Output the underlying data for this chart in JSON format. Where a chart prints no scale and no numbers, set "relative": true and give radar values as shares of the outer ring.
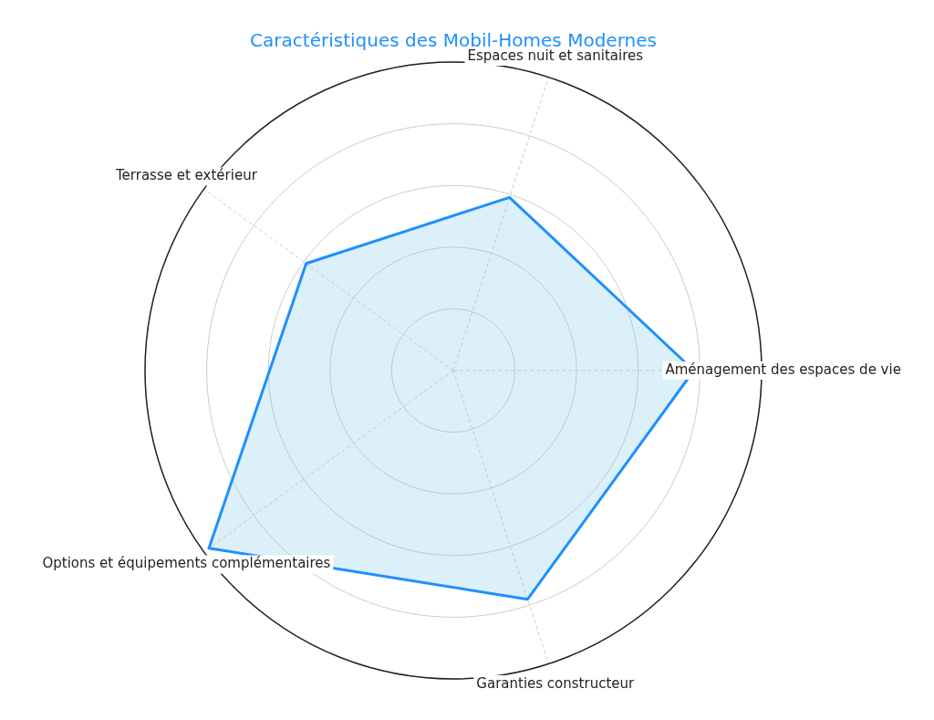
{
  "chart_data": {
    "type": "radar",
    "title": "Caractéristiques des Mobil-Homes Modernes",
    "categories": [
      "Espaces nuit et sanitaires",
      "Aménagement des espaces de vie",
      "Garanties constructeur",
      "Options et équipements complémentaires",
      "Terrasse et extérieur"
    ],
    "relative": true,
    "grid": true,
    "legend": false,
    "series": [
      {
        "color": "#1e90ff",
        "values": [
          0.59,
          0.78,
          0.78,
          0.98,
          0.59
        ]
      }
    ]
  }
}
